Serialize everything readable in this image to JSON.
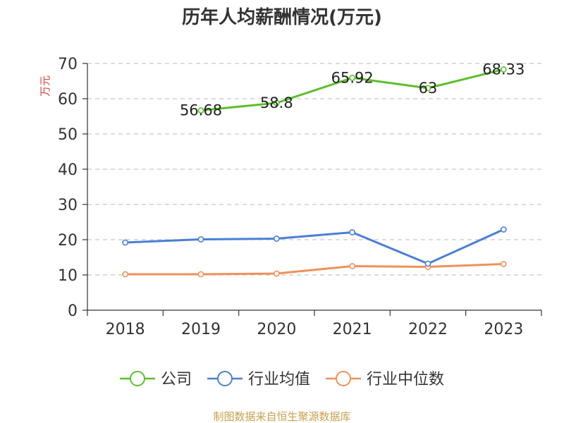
{
  "chart_data": {
    "type": "line",
    "title": "历年人均薪酬情况(万元)",
    "ylabel": "万元",
    "xlabel": "",
    "ylim": [
      0,
      70
    ],
    "yticks": [
      0,
      10,
      20,
      30,
      40,
      50,
      60,
      70
    ],
    "categories": [
      "2018",
      "2019",
      "2020",
      "2021",
      "2022",
      "2023"
    ],
    "series": [
      {
        "name": "公司",
        "color": "#5cbf2a",
        "values": [
          null,
          56.68,
          58.8,
          65.92,
          63,
          68.33
        ],
        "data_labels": [
          "",
          "56.68",
          "58.8",
          "65.92",
          "63",
          "68.33"
        ]
      },
      {
        "name": "行业均值",
        "color": "#4a7fd6",
        "values": [
          19.2,
          20.1,
          20.3,
          22.1,
          13.2,
          22.9
        ]
      },
      {
        "name": "行业中位数",
        "color": "#f0915a",
        "values": [
          10.2,
          10.2,
          10.4,
          12.5,
          12.3,
          13.1
        ]
      }
    ],
    "grid": true,
    "legend_position": "bottom"
  },
  "footer": {
    "source": "制图数据来自恒生聚源数据库"
  }
}
